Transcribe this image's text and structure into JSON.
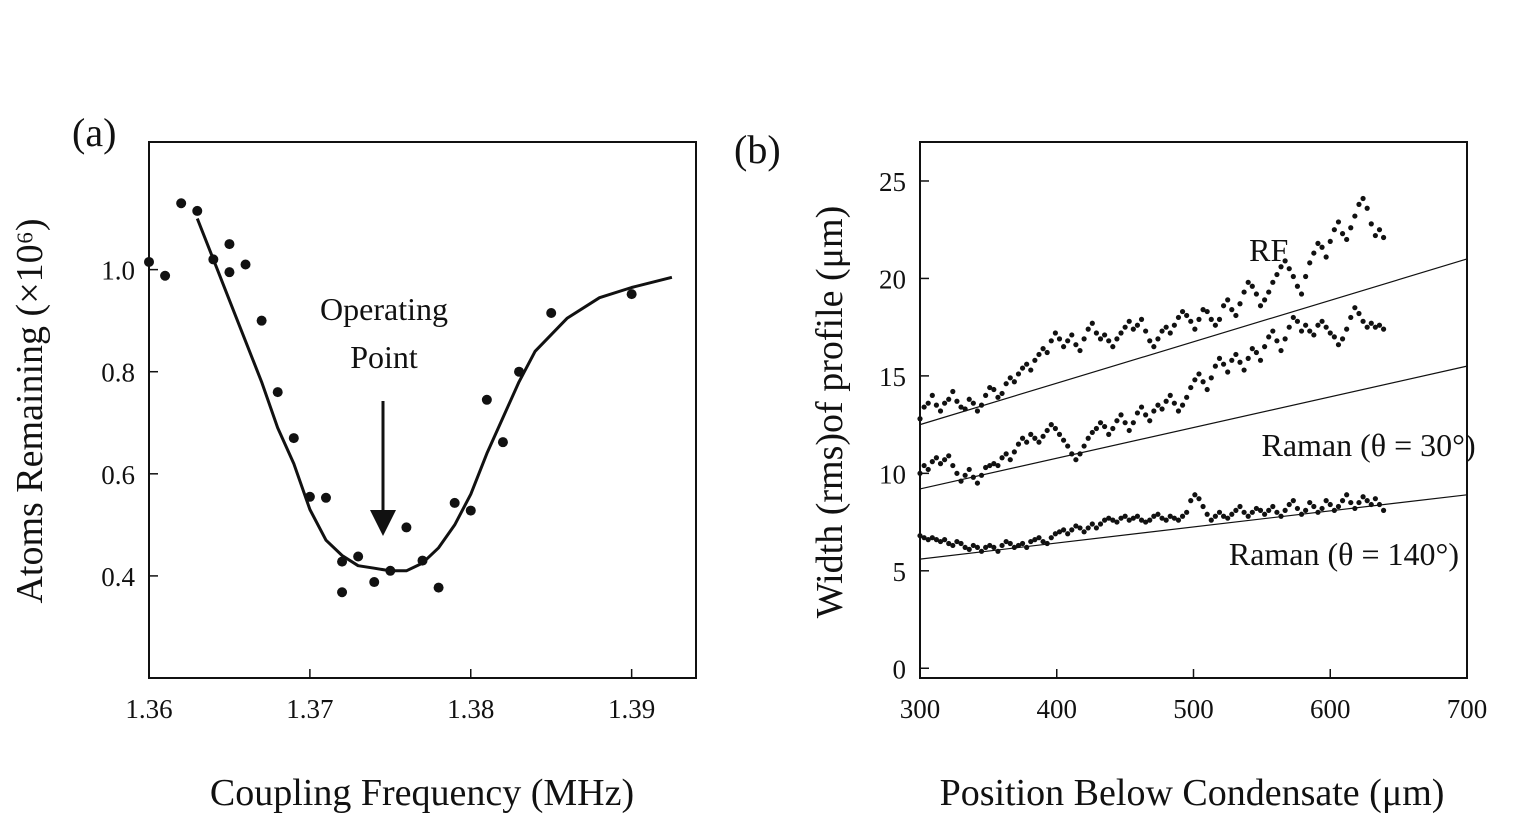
{
  "chart_data": [
    {
      "panel_label": "(a)",
      "type": "scatter",
      "xlabel": "Coupling Frequency (MHz)",
      "ylabel": "Atoms Remaining (×10⁶)",
      "xlim": [
        1.36,
        1.394
      ],
      "ylim": [
        0.2,
        1.25
      ],
      "xticks": [
        "1.36",
        "1.37",
        "1.38",
        "1.39"
      ],
      "xtick_values": [
        1.36,
        1.37,
        1.38,
        1.39
      ],
      "yticks": [
        "0.4",
        "0.6",
        "0.8",
        "1.0"
      ],
      "ytick_values": [
        0.4,
        0.6,
        0.8,
        1.0
      ],
      "points": [
        [
          1.36,
          1.015
        ],
        [
          1.361,
          0.988
        ],
        [
          1.362,
          1.13
        ],
        [
          1.363,
          1.115
        ],
        [
          1.364,
          1.02
        ],
        [
          1.365,
          0.995
        ],
        [
          1.365,
          1.05
        ],
        [
          1.366,
          1.01
        ],
        [
          1.367,
          0.9
        ],
        [
          1.368,
          0.76
        ],
        [
          1.369,
          0.67
        ],
        [
          1.37,
          0.555
        ],
        [
          1.371,
          0.553
        ],
        [
          1.372,
          0.428
        ],
        [
          1.372,
          0.368
        ],
        [
          1.373,
          0.438
        ],
        [
          1.374,
          0.388
        ],
        [
          1.375,
          0.41
        ],
        [
          1.376,
          0.495
        ],
        [
          1.377,
          0.43
        ],
        [
          1.378,
          0.377
        ],
        [
          1.379,
          0.543
        ],
        [
          1.38,
          0.528
        ],
        [
          1.381,
          0.745
        ],
        [
          1.382,
          0.662
        ],
        [
          1.383,
          0.8
        ],
        [
          1.385,
          0.915
        ],
        [
          1.39,
          0.952
        ]
      ],
      "fit": {
        "x": [
          1.363,
          1.364,
          1.365,
          1.366,
          1.367,
          1.368,
          1.369,
          1.37,
          1.371,
          1.372,
          1.373,
          1.374,
          1.375,
          1.376,
          1.377,
          1.378,
          1.379,
          1.38,
          1.381,
          1.382,
          1.383,
          1.384,
          1.386,
          1.388,
          1.39,
          1.3925
        ],
        "y": [
          1.1,
          1.02,
          0.94,
          0.86,
          0.78,
          0.69,
          0.62,
          0.53,
          0.47,
          0.44,
          0.42,
          0.415,
          0.41,
          0.41,
          0.425,
          0.455,
          0.5,
          0.56,
          0.64,
          0.71,
          0.78,
          0.84,
          0.905,
          0.945,
          0.965,
          0.985
        ]
      },
      "annotation": {
        "lines": [
          "Operating",
          "Point"
        ],
        "arrow_x": 1.3745
      }
    },
    {
      "panel_label": "(b)",
      "type": "scatter",
      "xlabel": "Position Below Condensate (μm)",
      "ylabel": "Width (rms)of profile (μm)",
      "xlim": [
        300,
        700
      ],
      "ylim": [
        -0.5,
        27
      ],
      "xticks": [
        "300",
        "400",
        "500",
        "600",
        "700"
      ],
      "xtick_values": [
        300,
        400,
        500,
        600,
        700
      ],
      "yticks": [
        "0",
        "5",
        "10",
        "15",
        "20",
        "25"
      ],
      "ytick_values": [
        0,
        5,
        10,
        15,
        20,
        25
      ],
      "series": [
        {
          "name": "RF",
          "x_start": 300,
          "x_step": 3,
          "values": [
            12.8,
            13.4,
            13.6,
            14.0,
            13.5,
            13.2,
            13.6,
            13.8,
            14.2,
            13.7,
            13.4,
            13.3,
            13.8,
            13.6,
            13.2,
            13.5,
            14.0,
            14.4,
            14.3,
            13.9,
            14.1,
            14.6,
            14.9,
            14.7,
            15.1,
            15.4,
            15.6,
            15.3,
            15.8,
            16.1,
            16.4,
            16.2,
            16.8,
            17.2,
            16.9,
            16.5,
            16.8,
            17.1,
            16.6,
            16.3,
            16.9,
            17.4,
            17.7,
            17.2,
            16.9,
            17.1,
            16.8,
            16.5,
            16.9,
            17.2,
            17.5,
            17.8,
            17.4,
            17.6,
            17.9,
            17.3,
            16.8,
            16.5,
            16.9,
            17.3,
            17.5,
            17.2,
            17.6,
            18.0,
            18.3,
            18.1,
            17.8,
            17.4,
            17.9,
            18.4,
            18.3,
            17.9,
            17.6,
            17.9,
            18.6,
            18.9,
            18.4,
            18.1,
            18.7,
            19.3,
            19.8,
            19.6,
            19.2,
            18.6,
            18.9,
            19.3,
            19.8,
            20.2,
            20.6,
            20.9,
            20.5,
            20.1,
            19.6,
            19.2,
            20.1,
            20.8,
            21.3,
            21.8,
            21.6,
            21.1,
            21.9,
            22.5,
            22.9,
            22.3,
            22.0,
            22.6,
            23.2,
            23.8,
            24.1,
            23.6,
            22.8,
            22.2,
            22.5,
            22.1
          ]
        },
        {
          "name": "Raman (θ = 30°)",
          "x_start": 300,
          "x_step": 3,
          "values": [
            10.0,
            10.4,
            10.2,
            10.6,
            10.8,
            10.5,
            10.7,
            10.9,
            10.4,
            10.0,
            9.6,
            9.9,
            10.2,
            9.8,
            9.5,
            9.9,
            10.3,
            10.4,
            10.5,
            10.4,
            10.8,
            11.0,
            10.7,
            11.1,
            11.5,
            11.8,
            11.6,
            12.0,
            11.8,
            11.6,
            11.9,
            12.2,
            12.5,
            12.3,
            12.0,
            11.7,
            11.4,
            11.0,
            10.7,
            11.0,
            11.4,
            11.8,
            12.1,
            12.3,
            12.6,
            12.4,
            12.0,
            12.3,
            12.7,
            13.0,
            12.6,
            12.2,
            12.6,
            13.1,
            13.4,
            13.0,
            12.7,
            13.2,
            13.5,
            13.3,
            13.7,
            14.0,
            13.6,
            13.2,
            13.5,
            13.9,
            14.4,
            14.8,
            15.1,
            14.7,
            14.3,
            14.9,
            15.5,
            15.9,
            15.6,
            15.2,
            15.8,
            16.1,
            15.7,
            15.3,
            15.9,
            16.4,
            16.2,
            15.8,
            16.5,
            17.0,
            17.3,
            16.8,
            16.3,
            16.9,
            17.5,
            18.0,
            17.8,
            17.3,
            17.6,
            17.3,
            17.1,
            17.6,
            17.8,
            17.5,
            17.2,
            17.0,
            16.6,
            16.9,
            17.4,
            18.0,
            18.5,
            18.2,
            17.8,
            17.5,
            17.7,
            17.5,
            17.6,
            17.4
          ]
        },
        {
          "name": "Raman (θ = 140°)",
          "x_start": 300,
          "x_step": 3,
          "values": [
            6.8,
            6.7,
            6.6,
            6.7,
            6.6,
            6.5,
            6.6,
            6.4,
            6.3,
            6.5,
            6.4,
            6.2,
            6.1,
            6.3,
            6.2,
            6.0,
            6.2,
            6.3,
            6.2,
            6.0,
            6.3,
            6.5,
            6.4,
            6.2,
            6.3,
            6.4,
            6.2,
            6.5,
            6.6,
            6.7,
            6.5,
            6.4,
            6.7,
            6.9,
            7.0,
            7.1,
            6.9,
            7.1,
            7.3,
            7.2,
            7.0,
            7.2,
            7.4,
            7.2,
            7.4,
            7.6,
            7.7,
            7.6,
            7.5,
            7.7,
            7.8,
            7.6,
            7.7,
            7.8,
            7.6,
            7.5,
            7.6,
            7.8,
            7.9,
            7.7,
            7.6,
            7.8,
            7.7,
            7.6,
            7.8,
            8.0,
            8.6,
            8.9,
            8.7,
            8.3,
            7.9,
            7.6,
            7.8,
            8.0,
            7.8,
            7.7,
            7.9,
            8.1,
            8.3,
            8.0,
            7.8,
            8.0,
            8.2,
            8.1,
            7.9,
            8.1,
            8.3,
            8.0,
            7.8,
            8.1,
            8.4,
            8.6,
            8.2,
            7.9,
            8.1,
            8.5,
            8.3,
            8.0,
            8.2,
            8.6,
            8.4,
            8.1,
            8.3,
            8.6,
            8.9,
            8.5,
            8.2,
            8.5,
            8.8,
            8.6,
            8.4,
            8.7,
            8.4,
            8.1
          ]
        }
      ],
      "fits": [
        {
          "x": [
            300,
            700
          ],
          "y": [
            12.5,
            21.0
          ]
        },
        {
          "x": [
            300,
            700
          ],
          "y": [
            9.2,
            15.5
          ]
        },
        {
          "x": [
            300,
            700
          ],
          "y": [
            5.6,
            8.9
          ]
        }
      ],
      "labels": [
        {
          "text": "RF",
          "x": 555,
          "y": 20.9,
          "anchor": "middle"
        },
        {
          "text": "Raman (θ = 30°)",
          "x": 628,
          "y": 10.9,
          "anchor": "middle"
        },
        {
          "text": "Raman (θ = 140°)",
          "x": 610,
          "y": 5.3,
          "anchor": "middle"
        }
      ]
    }
  ]
}
